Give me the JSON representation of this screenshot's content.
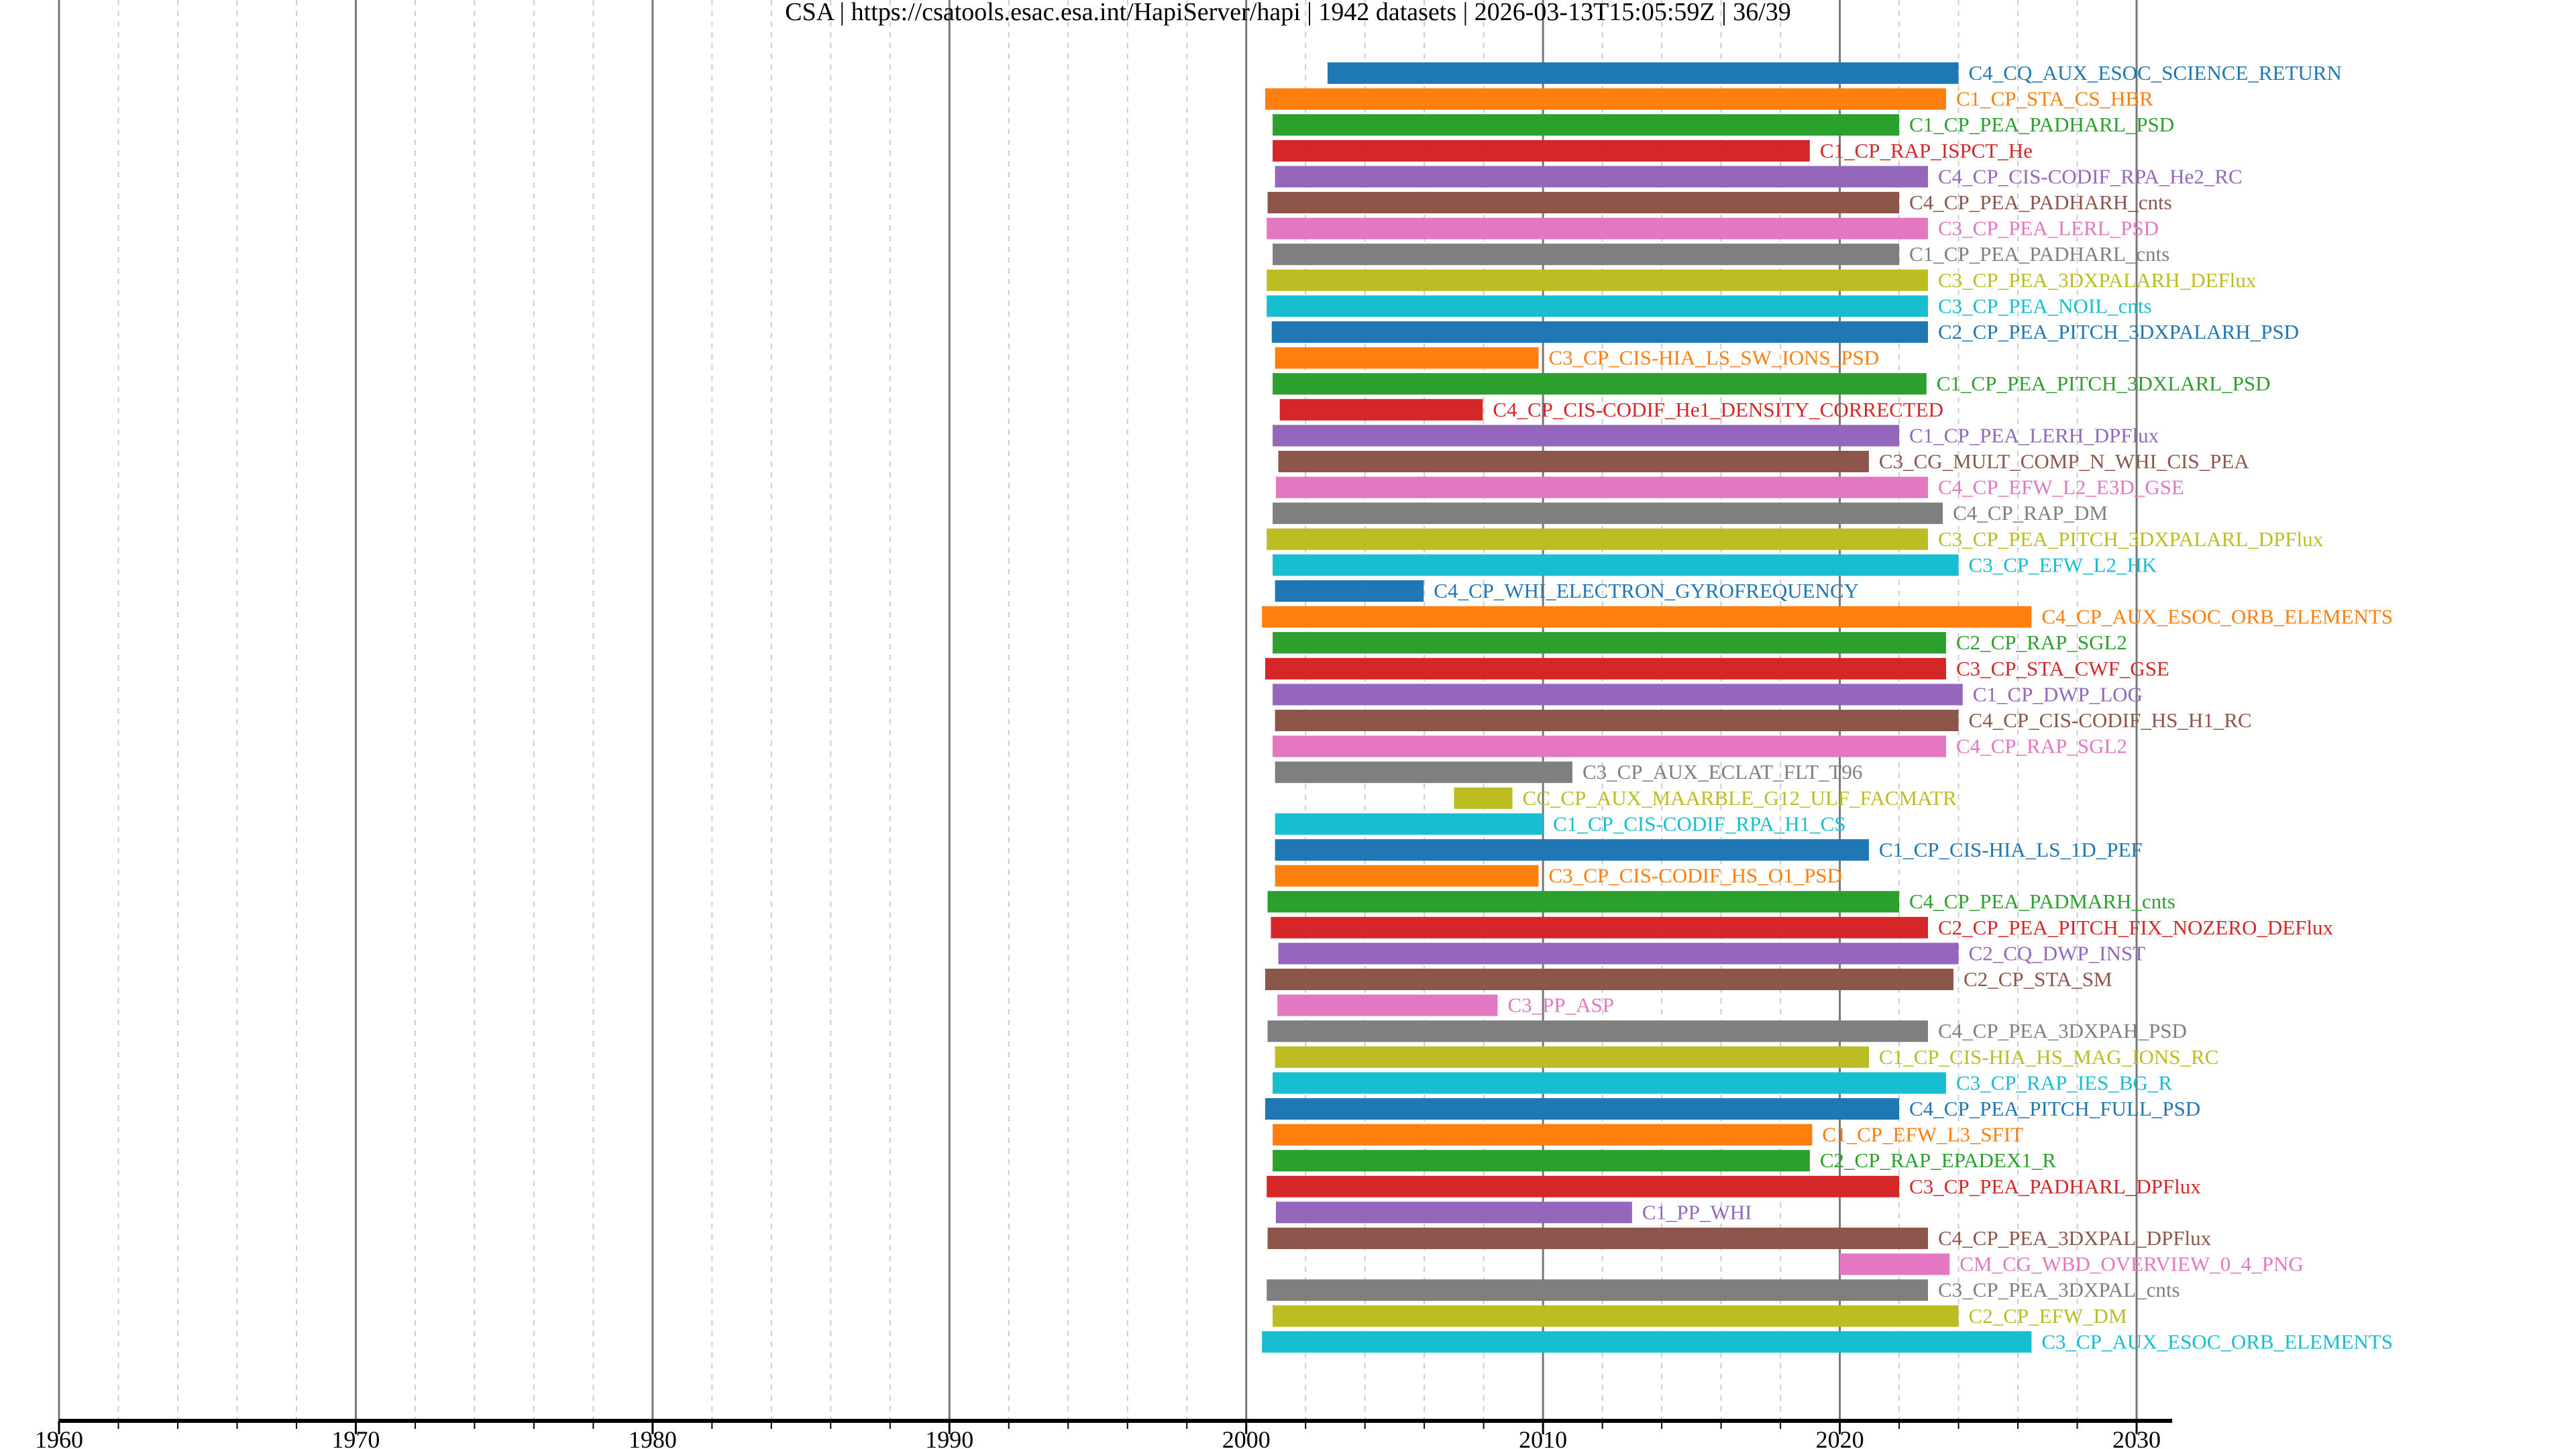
{
  "chart_data": {
    "type": "bar",
    "orientation": "horizontal-range",
    "title": "CSA | https://csatools.esac.esa.int/HapiServer/hapi | 1942 datasets | 2026-03-13T15:05:59Z | 36/39",
    "xlabel": "",
    "ylabel": "",
    "xlim": [
      1960,
      2031.2
    ],
    "x_ticks": [
      1960,
      1970,
      1980,
      1990,
      2000,
      2010,
      2020,
      2030
    ],
    "x_minor_step": 2,
    "grid": "vertical major solid, minor dashed",
    "palette": [
      "#1f77b4",
      "#ff7f0e",
      "#2ca02c",
      "#d62728",
      "#9467bd",
      "#8c564b",
      "#e377c2",
      "#7f7f7f",
      "#bcbd22",
      "#17becf"
    ],
    "series": [
      {
        "name": "C4_CQ_AUX_ESOC_SCIENCE_RETURN",
        "start": 2002.74,
        "end": 2024.0
      },
      {
        "name": "C1_CP_STA_CS_HBR",
        "start": 2000.64,
        "end": 2023.58
      },
      {
        "name": "C1_CP_PEA_PADHARL_PSD",
        "start": 2000.89,
        "end": 2022.0
      },
      {
        "name": "C1_CP_RAP_ISPCT_He",
        "start": 2000.89,
        "end": 2018.99
      },
      {
        "name": "C4_CP_CIS-CODIF_RPA_He2_RC",
        "start": 2000.97,
        "end": 2022.97
      },
      {
        "name": "C4_CP_PEA_PADHARH_cnts",
        "start": 2000.72,
        "end": 2022.0
      },
      {
        "name": "C3_CP_PEA_LERL_PSD",
        "start": 2000.69,
        "end": 2022.97
      },
      {
        "name": "C1_CP_PEA_PADHARL_cnts",
        "start": 2000.89,
        "end": 2022.0
      },
      {
        "name": "C3_CP_PEA_3DXPALARH_DEFlux",
        "start": 2000.69,
        "end": 2022.97
      },
      {
        "name": "C3_CP_PEA_NOIL_cnts",
        "start": 2000.69,
        "end": 2022.97
      },
      {
        "name": "C2_CP_PEA_PITCH_3DXPALARH_PSD",
        "start": 2000.86,
        "end": 2022.97
      },
      {
        "name": "C3_CP_CIS-HIA_LS_SW_IONS_PSD",
        "start": 2000.97,
        "end": 2009.85
      },
      {
        "name": "C1_CP_PEA_PITCH_3DXLARL_PSD",
        "start": 2000.89,
        "end": 2022.92
      },
      {
        "name": "C4_CP_CIS-CODIF_He1_DENSITY_CORRECTED",
        "start": 2001.13,
        "end": 2007.97
      },
      {
        "name": "C1_CP_PEA_LERH_DPFlux",
        "start": 2000.89,
        "end": 2022.0
      },
      {
        "name": "C3_CG_MULT_COMP_N_WHI_CIS_PEA",
        "start": 2001.08,
        "end": 2020.98
      },
      {
        "name": "C4_CP_EFW_L2_E3D_GSE",
        "start": 2001.0,
        "end": 2022.97
      },
      {
        "name": "C4_CP_RAP_DM",
        "start": 2000.89,
        "end": 2023.47
      },
      {
        "name": "C3_CP_PEA_PITCH_3DXPALARL_DPFlux",
        "start": 2000.69,
        "end": 2022.97
      },
      {
        "name": "C3_CP_EFW_L2_HK",
        "start": 2000.89,
        "end": 2024.0
      },
      {
        "name": "C4_CP_WHI_ELECTRON_GYROFREQUENCY",
        "start": 2000.97,
        "end": 2005.98
      },
      {
        "name": "C4_CP_AUX_ESOC_ORB_ELEMENTS",
        "start": 2000.53,
        "end": 2026.46
      },
      {
        "name": "C2_CP_RAP_SGL2",
        "start": 2000.89,
        "end": 2023.58
      },
      {
        "name": "C3_CP_STA_CWF_GSE",
        "start": 2000.64,
        "end": 2023.58
      },
      {
        "name": "C1_CP_DWP_LOG",
        "start": 2000.89,
        "end": 2024.14
      },
      {
        "name": "C4_CP_CIS-CODIF_HS_H1_RC",
        "start": 2000.97,
        "end": 2024.0
      },
      {
        "name": "C4_CP_RAP_SGL2",
        "start": 2000.89,
        "end": 2023.58
      },
      {
        "name": "C3_CP_AUX_ECLAT_FLT_T96",
        "start": 2000.97,
        "end": 2010.99
      },
      {
        "name": "CC_CP_AUX_MAARBLE_G12_ULF_FACMATR",
        "start": 2007.0,
        "end": 2008.97
      },
      {
        "name": "C1_CP_CIS-CODIF_RPA_H1_CS",
        "start": 2000.97,
        "end": 2010.0
      },
      {
        "name": "C1_CP_CIS-HIA_LS_1D_PEF",
        "start": 2000.97,
        "end": 2020.98
      },
      {
        "name": "C3_CP_CIS-CODIF_HS_O1_PSD",
        "start": 2000.97,
        "end": 2009.85
      },
      {
        "name": "C4_CP_PEA_PADMARH_cnts",
        "start": 2000.72,
        "end": 2022.0
      },
      {
        "name": "C2_CP_PEA_PITCH_FIX_NOZERO_DEFlux",
        "start": 2000.83,
        "end": 2022.97
      },
      {
        "name": "C2_CQ_DWP_INST",
        "start": 2001.08,
        "end": 2024.0
      },
      {
        "name": "C2_CP_STA_SM",
        "start": 2000.64,
        "end": 2023.83
      },
      {
        "name": "C3_PP_ASP",
        "start": 2001.05,
        "end": 2008.47
      },
      {
        "name": "C4_CP_PEA_3DXPAH_PSD",
        "start": 2000.72,
        "end": 2022.97
      },
      {
        "name": "C1_CP_CIS-HIA_HS_MAG_IONS_RC",
        "start": 2000.97,
        "end": 2020.98
      },
      {
        "name": "C3_CP_RAP_IES_BG_R",
        "start": 2000.89,
        "end": 2023.58
      },
      {
        "name": "C4_CP_PEA_PITCH_FULL_PSD",
        "start": 2000.64,
        "end": 2022.0
      },
      {
        "name": "C1_CP_EFW_L3_SFIT",
        "start": 2000.89,
        "end": 2019.07
      },
      {
        "name": "C2_CP_RAP_EPADEX1_R",
        "start": 2000.89,
        "end": 2018.99
      },
      {
        "name": "C3_CP_PEA_PADHARL_DPFlux",
        "start": 2000.69,
        "end": 2022.0
      },
      {
        "name": "C1_PP_WHI",
        "start": 2001.0,
        "end": 2013.0
      },
      {
        "name": "C4_CP_PEA_3DXPAL_DPFlux",
        "start": 2000.72,
        "end": 2022.97
      },
      {
        "name": "CM_CG_WBD_OVERVIEW_0_4_PNG",
        "start": 2020.0,
        "end": 2023.7
      },
      {
        "name": "C3_CP_PEA_3DXPAL_cnts",
        "start": 2000.69,
        "end": 2022.97
      },
      {
        "name": "C2_CP_EFW_DM",
        "start": 2000.89,
        "end": 2024.0
      },
      {
        "name": "C3_CP_AUX_ESOC_ORB_ELEMENTS",
        "start": 2000.53,
        "end": 2026.46
      }
    ]
  }
}
